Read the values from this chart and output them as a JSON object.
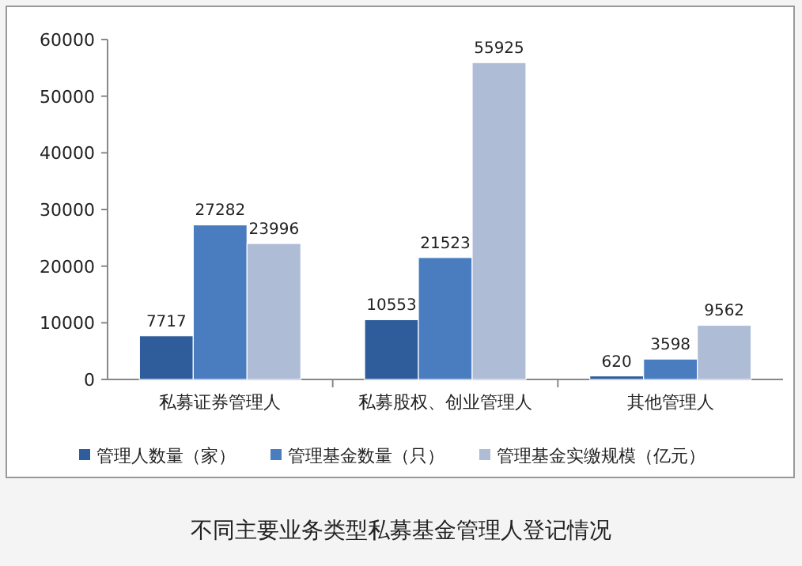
{
  "chart_data": {
    "type": "bar",
    "title": "不同主要业务类型私募基金管理人登记情况",
    "categories": [
      "私募证券管理人",
      "私募股权、创业管理人",
      "其他管理人"
    ],
    "series": [
      {
        "name": "管理人数量（家）",
        "color": "#2f5d9b",
        "values": [
          7717,
          10553,
          620
        ]
      },
      {
        "name": "管理基金数量（只）",
        "color": "#4a7cc0",
        "values": [
          27282,
          21523,
          3598
        ]
      },
      {
        "name": "管理基金实缴规模（亿元）",
        "color": "#aebcd6",
        "values": [
          23996,
          55925,
          9562
        ]
      }
    ],
    "ylim": [
      0,
      60000
    ],
    "yticks": [
      0,
      10000,
      20000,
      30000,
      40000,
      50000,
      60000
    ],
    "data_labels": true,
    "legend": "bottom"
  }
}
